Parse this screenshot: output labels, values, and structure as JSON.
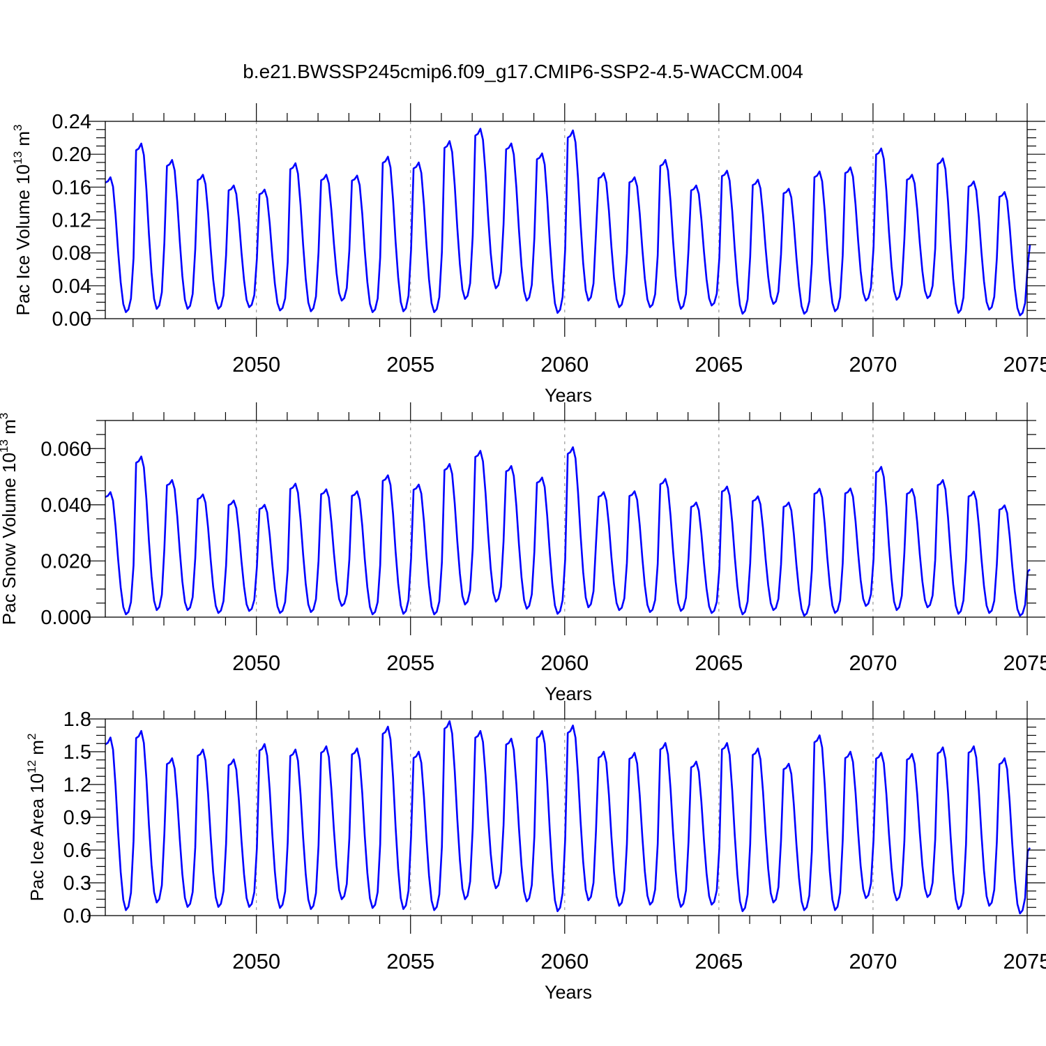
{
  "title": "b.e21.BWSSP245cmip6.f09_g17.CMIP6-SSP2-4.5-WACCM.004",
  "colors": {
    "series": "#0000ff",
    "axis": "#000000",
    "grid": "#999999",
    "background": "#ffffff"
  },
  "chart_data": [
    {
      "type": "line",
      "ylabel_main": "Pac Ice Volume 10",
      "ylabel_exp": "13",
      "ylabel_unit": " m",
      "ylabel_unit_exp": "3",
      "xlabel": "Years",
      "xlim": [
        2045.1,
        2075.0
      ],
      "ylim": [
        0.0,
        0.24
      ],
      "yticks": [
        0.0,
        0.04,
        0.08,
        0.12,
        0.16,
        0.2,
        0.24
      ],
      "ytick_labels": [
        "0.00",
        "0.04",
        "0.08",
        "0.12",
        "0.16",
        "0.20",
        "0.24"
      ],
      "xticks": [
        2050,
        2055,
        2060,
        2065,
        2070,
        2075
      ],
      "xtick_labels": [
        "2050",
        "2055",
        "2060",
        "2065",
        "2070",
        "2075"
      ],
      "grid": "vertical dashed at major x ticks",
      "cycle": {
        "start": 2045.1,
        "peak_month": 2,
        "mins": [
          0.008,
          0.012,
          0.012,
          0.012,
          0.014,
          0.01,
          0.009,
          0.022,
          0.008,
          0.009,
          0.008,
          0.024,
          0.037,
          0.022,
          0.007,
          0.022,
          0.014,
          0.014,
          0.012,
          0.016,
          0.006,
          0.018,
          0.006,
          0.009,
          0.022,
          0.023,
          0.025,
          0.007,
          0.011,
          0.004
        ],
        "maxs": [
          0.172,
          0.213,
          0.193,
          0.175,
          0.162,
          0.157,
          0.189,
          0.175,
          0.174,
          0.197,
          0.19,
          0.216,
          0.231,
          0.213,
          0.201,
          0.229,
          0.177,
          0.172,
          0.193,
          0.162,
          0.18,
          0.169,
          0.158,
          0.179,
          0.184,
          0.207,
          0.175,
          0.195,
          0.167,
          0.154
        ],
        "end_value": 0.09
      }
    },
    {
      "type": "line",
      "ylabel_main": "Pac Snow Volume 10",
      "ylabel_exp": "13",
      "ylabel_unit": " m",
      "ylabel_unit_exp": "3",
      "xlabel": "Years",
      "xlim": [
        2045.1,
        2075.0
      ],
      "ylim": [
        0.0,
        0.07
      ],
      "yticks": [
        0.0,
        0.02,
        0.04,
        0.06
      ],
      "ytick_labels": [
        "0.000",
        "0.020",
        "0.040",
        "0.060"
      ],
      "xticks": [
        2050,
        2055,
        2060,
        2065,
        2070,
        2075
      ],
      "xtick_labels": [
        "2050",
        "2055",
        "2060",
        "2065",
        "2070",
        "2075"
      ],
      "grid": "vertical dashed at major x ticks",
      "cycle": {
        "start": 2045.1,
        "peak_month": 2,
        "mins": [
          0.001,
          0.0025,
          0.0025,
          0.0015,
          0.0022,
          0.0015,
          0.0018,
          0.004,
          0.001,
          0.0012,
          0.001,
          0.0045,
          0.0055,
          0.003,
          0.0012,
          0.0035,
          0.0025,
          0.0018,
          0.0022,
          0.0015,
          0.001,
          0.0025,
          0.0005,
          0.0015,
          0.004,
          0.0025,
          0.0035,
          0.0012,
          0.0015,
          0.0005
        ],
        "maxs": [
          0.0445,
          0.0572,
          0.0488,
          0.0437,
          0.0415,
          0.04,
          0.0475,
          0.0455,
          0.0448,
          0.0505,
          0.0472,
          0.0545,
          0.0592,
          0.0538,
          0.0497,
          0.0605,
          0.0445,
          0.0448,
          0.0492,
          0.0408,
          0.0465,
          0.043,
          0.0408,
          0.0457,
          0.0458,
          0.0535,
          0.0456,
          0.0488,
          0.0447,
          0.0398
        ],
        "end_value": 0.017
      }
    },
    {
      "type": "line",
      "ylabel_main": "Pac Ice Area 10",
      "ylabel_exp": "12",
      "ylabel_unit": " m",
      "ylabel_unit_exp": "2",
      "xlabel": "Years",
      "xlim": [
        2045.1,
        2075.0
      ],
      "ylim": [
        0.0,
        1.8
      ],
      "yticks": [
        0.0,
        0.3,
        0.6,
        0.9,
        1.2,
        1.5,
        1.8
      ],
      "ytick_labels": [
        "0.0",
        "0.3",
        "0.6",
        "0.9",
        "1.2",
        "1.5",
        "1.8"
      ],
      "xticks": [
        2050,
        2055,
        2060,
        2065,
        2070,
        2075
      ],
      "xtick_labels": [
        "2050",
        "2055",
        "2060",
        "2065",
        "2070",
        "2075"
      ],
      "grid": "vertical dashed at major x ticks",
      "cycle": {
        "start": 2045.1,
        "peak_month": 2,
        "mins": [
          0.05,
          0.12,
          0.08,
          0.08,
          0.08,
          0.07,
          0.06,
          0.15,
          0.07,
          0.06,
          0.05,
          0.15,
          0.25,
          0.13,
          0.04,
          0.14,
          0.09,
          0.1,
          0.08,
          0.1,
          0.04,
          0.12,
          0.05,
          0.05,
          0.16,
          0.14,
          0.17,
          0.06,
          0.09,
          0.02
        ],
        "maxs": [
          1.63,
          1.69,
          1.44,
          1.52,
          1.43,
          1.57,
          1.52,
          1.55,
          1.53,
          1.73,
          1.5,
          1.78,
          1.69,
          1.62,
          1.69,
          1.74,
          1.5,
          1.49,
          1.58,
          1.41,
          1.58,
          1.53,
          1.39,
          1.65,
          1.5,
          1.49,
          1.48,
          1.54,
          1.55,
          1.44
        ],
        "end_value": 0.62
      }
    }
  ]
}
